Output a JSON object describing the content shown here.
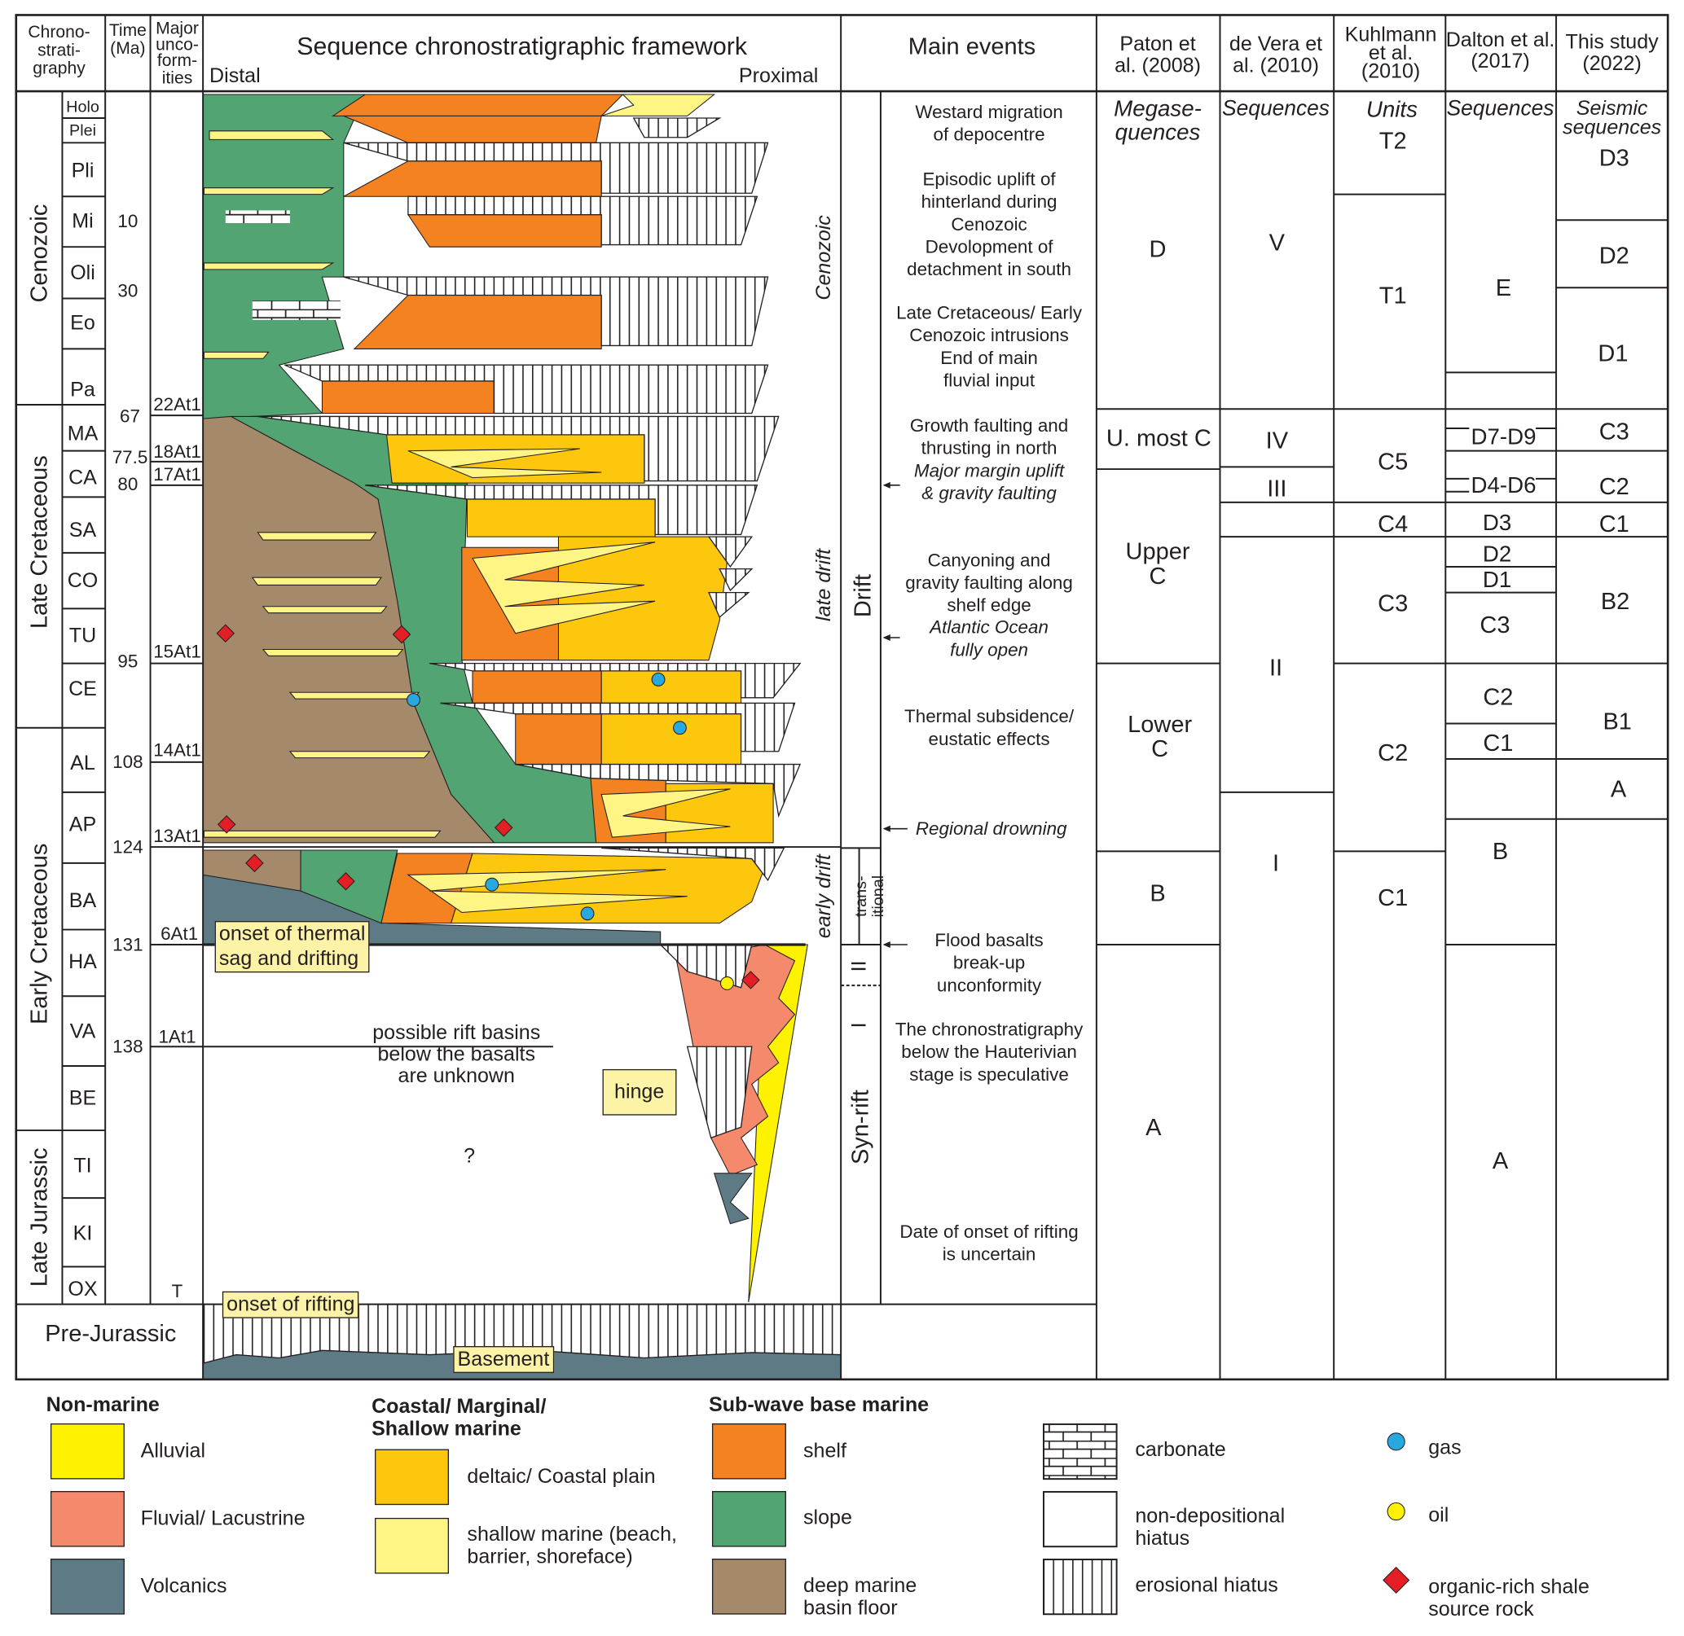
{
  "header": {
    "chrono": "Chrono-\nstrati-\ngraphy",
    "time": "Time\n(Ma)",
    "unconformities": "Major\nunco-\nform-\nities",
    "framework_title": "Sequence chronostratigraphic framework",
    "distal": "Distal",
    "proximal": "Proximal",
    "main_events": "Main events",
    "paton": "Paton et\nal. (2008)",
    "devera": "de Vera et\nal. (2010)",
    "kuhlmann": "Kuhlmann\net al.\n(2010)",
    "dalton": "Dalton et al.\n(2017)",
    "this_study": "This study\n(2022)"
  },
  "eras": [
    "Cenozoic",
    "Late Cretaceous",
    "Early Cretaceous",
    "Late Jurassic"
  ],
  "pre_jurassic": "Pre-Jurassic",
  "stages": [
    "Holo",
    "Plei",
    "Pli",
    "Mi",
    "Oli",
    "Eo",
    "Pa",
    "MA",
    "CA",
    "SA",
    "CO",
    "TU",
    "CE",
    "AL",
    "AP",
    "BA",
    "HA",
    "VA",
    "BE",
    "TI",
    "KI",
    "OX"
  ],
  "ages": [
    "10",
    "30",
    "67",
    "77.5",
    "80",
    "95",
    "108",
    "124",
    "131",
    "138"
  ],
  "unconformities": [
    "22At1",
    "18At1",
    "17At1",
    "15At1",
    "14At1",
    "13At1",
    "6At1",
    "1At1",
    "T"
  ],
  "framework_labels": {
    "cenozoic": "Cenozoic",
    "late_drift": "late drift",
    "early_drift": "early drift",
    "onset_thermal": "onset of thermal\nsag and drifting",
    "rift_unknown": "possible rift basins\nbelow the basalts\nare unknown",
    "hinge": "hinge",
    "question": "?",
    "onset_rifting": "onset of rifting",
    "basement": "Basement"
  },
  "phases": {
    "drift": "Drift",
    "transitional": "trans-\nitional",
    "syn_rift": "Syn-rift",
    "ii": "II",
    "i": "I"
  },
  "events": [
    {
      "text": "Westard migration\nof depocentre",
      "italic": false
    },
    {
      "text": "Episodic uplift of\nhinterland during\nCenozoic\nDevolopment of\ndetachment in south",
      "italic": false
    },
    {
      "text": "Late Cretaceous/ Early\nCenozoic intrusions\nEnd of main\nfluvial input",
      "italic": false
    },
    {
      "text": "Growth faulting and\nthrusting in north",
      "italic": false
    },
    {
      "text": "Major margin uplift\n& gravity faulting",
      "italic": true
    },
    {
      "text": "Canyoning and\ngravity faulting along\nshelf edge",
      "italic": false
    },
    {
      "text": "Atlantic Ocean\nfully open",
      "italic": true
    },
    {
      "text": "Thermal subsidence/\neustatic effects",
      "italic": false
    },
    {
      "text": "Regional drowning",
      "italic": true
    },
    {
      "text": "Flood basalts\nbreak-up\nunconformity",
      "italic": false
    },
    {
      "text": "The chronostratigraphy\nbelow the Hauterivian\nstage is speculative",
      "italic": false
    },
    {
      "text": "Date of onset of rifting\nis uncertain",
      "italic": false
    }
  ],
  "paton": {
    "subtitle": "Megase-\nquences",
    "units": [
      "D",
      "U. most C",
      "Upper\nC",
      "Lower\nC",
      "B",
      "A"
    ]
  },
  "devera": {
    "subtitle": "Sequences",
    "units": [
      "V",
      "IV",
      "III",
      "II",
      "I"
    ]
  },
  "kuhlmann": {
    "subtitle": "Units",
    "units": [
      "T2",
      "T1",
      "C5",
      "C4",
      "C3",
      "C2",
      "C1"
    ]
  },
  "dalton": {
    "subtitle": "Sequences",
    "units": [
      "E",
      "D7-D9",
      "D4-D6",
      "D3",
      "D2",
      "D1",
      "C3",
      "C2",
      "C1",
      "B",
      "A"
    ]
  },
  "this_study": {
    "subtitle": "Seismic\nsequences",
    "units": [
      "D3",
      "D2",
      "D1",
      "C3",
      "C2",
      "C1",
      "B2",
      "B1",
      "A"
    ]
  },
  "legend": {
    "non_marine": "Non-marine",
    "coastal": "Coastal/ Marginal/\nShallow marine",
    "sub_wave": "Sub-wave base marine",
    "alluvial": "Alluvial",
    "fluvial": "Fluvial/ Lacustrine",
    "volcanics": "Volcanics",
    "deltaic": "deltaic/ Coastal plain",
    "shallow": "shallow marine (beach,\nbarrier, shoreface)",
    "shelf": "shelf",
    "slope": "slope",
    "deep": "deep marine\nbasin floor",
    "carbonate": "carbonate",
    "non_dep": "non-depositional\nhiatus",
    "erosional": "erosional hiatus",
    "gas": "gas",
    "oil": "oil",
    "source": "organic-rich shale\nsource rock"
  },
  "colors": {
    "alluvial": "#fff200",
    "fluvial": "#f4896b",
    "volcanics": "#5e7b85",
    "deltaic": "#fdc70d",
    "shallow": "#fff584",
    "shelf": "#f58220",
    "slope": "#52a472",
    "deep": "#a48a6b",
    "gas": "#29a8e0",
    "source": "#e31e24"
  }
}
